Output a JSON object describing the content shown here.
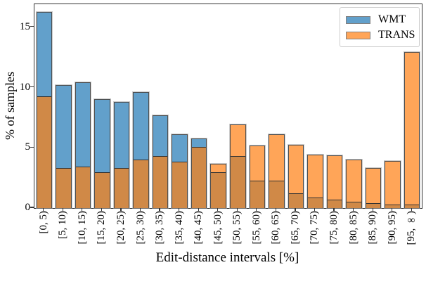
{
  "chart_data": {
    "type": "bar",
    "style": "two overlapping translucent histograms",
    "title": "",
    "xlabel": "Edit-distance intervals [%]",
    "ylabel": "% of samples",
    "categories": [
      "[0, 5)",
      "[5, 10)",
      "[10, 15)",
      "[15, 20)",
      "[20, 25)",
      "[25, 30)",
      "[30, 35)",
      "[35, 40)",
      "[40, 45)",
      "[45, 50)",
      "[50, 55)",
      "[55, 60)",
      "[60, 65)",
      "[65, 70)",
      "[70, 75)",
      "[75, 80)",
      "[80, 85)",
      "[85, 90)",
      "[90, 95)",
      "[95, ∞)"
    ],
    "series": [
      {
        "name": "WMT",
        "color": "#62a0cb",
        "values": [
          16.3,
          10.2,
          10.45,
          9.05,
          8.8,
          9.6,
          7.7,
          6.1,
          5.8,
          3.0,
          4.3,
          2.3,
          2.3,
          1.25,
          0.9,
          0.7,
          0.5,
          0.4,
          0.3,
          0.3
        ]
      },
      {
        "name": "TRANS",
        "color": "#ffa558",
        "values": [
          9.3,
          3.3,
          3.45,
          3.0,
          3.35,
          4.05,
          4.3,
          3.85,
          5.1,
          3.7,
          6.95,
          5.2,
          6.1,
          5.25,
          4.45,
          4.4,
          4.05,
          3.35,
          3.9,
          12.95
        ]
      }
    ],
    "overlap_color": "#d08947",
    "bar_edge_color": "#4d4d4d",
    "yticks": [
      0,
      5,
      10,
      15
    ],
    "ylim": [
      0,
      16.92
    ],
    "grid": false,
    "legend_position": "upper right",
    "legend": {
      "items": [
        {
          "label": "WMT",
          "color": "#62a0cb"
        },
        {
          "label": "TRANS",
          "color": "#ffa558"
        }
      ]
    }
  }
}
